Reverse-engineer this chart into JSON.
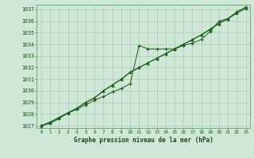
{
  "title": "Graphe pression niveau de la mer (hPa)",
  "background_color": "#cde8d4",
  "plot_bg_color": "#cde8d4",
  "grid_color": "#b0c8b8",
  "line_color": "#1a5c1a",
  "xlim": [
    -0.5,
    23.5
  ],
  "ylim": [
    1026.8,
    1037.4
  ],
  "xticks": [
    0,
    1,
    2,
    3,
    4,
    5,
    6,
    7,
    8,
    9,
    10,
    11,
    12,
    13,
    14,
    15,
    16,
    17,
    18,
    19,
    20,
    21,
    22,
    23
  ],
  "yticks": [
    1027,
    1028,
    1029,
    1030,
    1031,
    1032,
    1033,
    1034,
    1035,
    1036,
    1037
  ],
  "line1_x": [
    0,
    1,
    2,
    3,
    4,
    5,
    6,
    7,
    8,
    9,
    10,
    11,
    12,
    13,
    14,
    15,
    16,
    17,
    18,
    19,
    20,
    21,
    22,
    23
  ],
  "line1_y": [
    1027.0,
    1027.2,
    1027.6,
    1028.1,
    1028.4,
    1028.8,
    1029.2,
    1029.5,
    1029.9,
    1030.2,
    1030.6,
    1033.9,
    1033.6,
    1033.6,
    1033.6,
    1033.6,
    1033.9,
    1034.1,
    1034.4,
    1035.1,
    1036.0,
    1036.2,
    1036.8,
    1037.2
  ],
  "line2_x": [
    0,
    1,
    2,
    3,
    4,
    5,
    6,
    7,
    8,
    9,
    10,
    11,
    12,
    13,
    14,
    15,
    16,
    17,
    18,
    19,
    20,
    21,
    22,
    23
  ],
  "line2_y": [
    1027.0,
    1027.3,
    1027.7,
    1028.1,
    1028.5,
    1029.0,
    1029.4,
    1030.0,
    1030.5,
    1031.0,
    1031.6,
    1032.0,
    1032.4,
    1032.8,
    1033.2,
    1033.6,
    1034.0,
    1034.4,
    1034.8,
    1035.3,
    1035.8,
    1036.2,
    1036.7,
    1037.1
  ]
}
